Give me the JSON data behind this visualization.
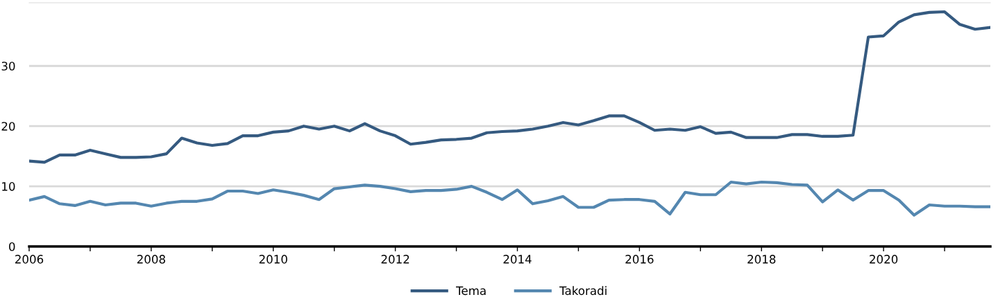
{
  "chart_data": {
    "type": "line",
    "x": [
      "2006-01",
      "2006-04",
      "2006-07",
      "2006-10",
      "2007-01",
      "2007-04",
      "2007-07",
      "2007-10",
      "2008-01",
      "2008-04",
      "2008-07",
      "2008-10",
      "2009-01",
      "2009-04",
      "2009-07",
      "2009-10",
      "2010-01",
      "2010-04",
      "2010-07",
      "2010-10",
      "2011-01",
      "2011-04",
      "2011-07",
      "2011-10",
      "2012-01",
      "2012-04",
      "2012-07",
      "2012-10",
      "2013-01",
      "2013-04",
      "2013-07",
      "2013-10",
      "2014-01",
      "2014-04",
      "2014-07",
      "2014-10",
      "2015-01",
      "2015-04",
      "2015-07",
      "2015-10",
      "2016-01",
      "2016-04",
      "2016-07",
      "2016-10",
      "2017-01",
      "2017-04",
      "2017-07",
      "2017-10",
      "2018-01",
      "2018-04",
      "2018-07",
      "2018-10",
      "2019-01",
      "2019-04",
      "2019-07",
      "2019-10",
      "2020-01",
      "2020-04",
      "2020-07",
      "2020-10",
      "2021-01",
      "2021-04",
      "2021-07",
      "2021-10"
    ],
    "series": [
      {
        "name": "Tema",
        "color": "#355a80",
        "values": [
          14.2,
          14.0,
          15.2,
          15.2,
          16.0,
          15.4,
          14.8,
          14.8,
          14.9,
          15.4,
          18.0,
          17.2,
          16.8,
          17.1,
          18.4,
          18.4,
          19.0,
          19.2,
          20.0,
          19.5,
          20.0,
          19.2,
          20.4,
          19.2,
          18.4,
          17.0,
          17.3,
          17.7,
          17.8,
          18.0,
          18.9,
          19.1,
          19.2,
          19.5,
          20.0,
          20.6,
          20.2,
          20.9,
          21.7,
          21.7,
          20.6,
          19.3,
          19.5,
          19.3,
          19.9,
          18.8,
          19.0,
          18.1,
          18.1,
          18.1,
          18.6,
          18.6,
          18.3,
          18.3,
          18.5,
          34.8,
          35.0,
          37.3,
          38.5,
          38.9,
          39.0,
          36.9,
          36.1,
          36.4
        ]
      },
      {
        "name": "Takoradi",
        "color": "#5487b0",
        "values": [
          7.7,
          8.3,
          7.1,
          6.8,
          7.5,
          6.9,
          7.2,
          7.2,
          6.7,
          7.2,
          7.5,
          7.5,
          7.9,
          9.2,
          9.2,
          8.8,
          9.4,
          9.0,
          8.5,
          7.8,
          9.6,
          9.9,
          10.2,
          10.0,
          9.6,
          9.1,
          9.3,
          9.3,
          9.5,
          10.0,
          9.0,
          7.8,
          9.4,
          7.1,
          7.6,
          8.3,
          6.5,
          6.5,
          7.7,
          7.8,
          7.8,
          7.5,
          5.4,
          9.0,
          8.6,
          8.6,
          10.7,
          10.4,
          10.7,
          10.6,
          10.3,
          10.2,
          7.4,
          9.4,
          7.7,
          9.3,
          9.3,
          7.7,
          5.2,
          6.9,
          6.7,
          6.7,
          6.6,
          6.6
        ]
      }
    ],
    "xlim": [
      "2006-01",
      "2021-10"
    ],
    "xticks": [
      {
        "value": "2006-01",
        "label": "2006"
      },
      {
        "value": "2007-01",
        "label": null
      },
      {
        "value": "2008-01",
        "label": "2008"
      },
      {
        "value": "2009-01",
        "label": null
      },
      {
        "value": "2010-01",
        "label": "2010"
      },
      {
        "value": "2011-01",
        "label": null
      },
      {
        "value": "2012-01",
        "label": "2012"
      },
      {
        "value": "2013-01",
        "label": null
      },
      {
        "value": "2014-01",
        "label": "2014"
      },
      {
        "value": "2015-01",
        "label": null
      },
      {
        "value": "2016-01",
        "label": "2016"
      },
      {
        "value": "2017-01",
        "label": null
      },
      {
        "value": "2018-01",
        "label": "2018"
      },
      {
        "value": "2019-01",
        "label": null
      },
      {
        "value": "2020-01",
        "label": "2020"
      },
      {
        "value": "2021-01",
        "label": null
      }
    ],
    "ylim": [
      0,
      40.5
    ],
    "yticks": [
      0,
      10,
      20,
      30
    ],
    "grid": "y",
    "legend": "bottom",
    "marker": "none",
    "line_style": "solid"
  }
}
